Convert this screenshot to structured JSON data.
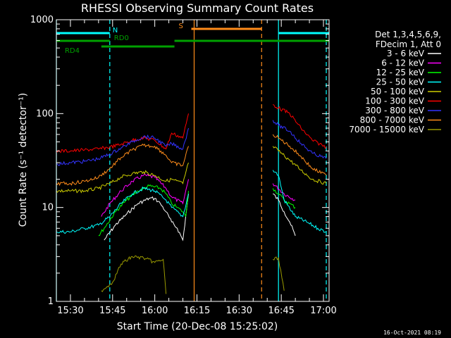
{
  "colors": {
    "background": "#000000",
    "axis": "#ffffff",
    "cyan": "#00ffff",
    "green": "#00a000",
    "orange": "#ff8c1a"
  },
  "chart_data": {
    "type": "line",
    "title": "RHESSI Observing Summary Count Rates",
    "xlabel": "Start Time (20-Dec-08 15:25:02)",
    "ylabel": "Count Rate (s⁻¹ detector⁻¹)",
    "y_scale": "log",
    "ylim": [
      1,
      1000
    ],
    "xlim": [
      "15:25",
      "17:02"
    ],
    "x_ticks": [
      "15:30",
      "15:45",
      "16:00",
      "16:15",
      "16:30",
      "16:45",
      "17:00"
    ],
    "y_ticks": [
      "1",
      "10",
      "100",
      "1000"
    ],
    "legend_header": [
      "Det 1,3,4,5,6,9,",
      "FDecim 1, Att 0"
    ],
    "legend_position": "right",
    "footer": "16-Oct-2021 08:19",
    "grid": false,
    "flags": [
      {
        "label": "N",
        "color": "#00ffff",
        "row": "N",
        "segments": [
          [
            "15:25",
            "15:44"
          ],
          [
            "16:44",
            "17:02"
          ]
        ]
      },
      {
        "label": "RD0",
        "color": "#00a000",
        "row": "RD0",
        "segments": [
          [
            "15:25",
            "15:44"
          ],
          [
            "16:07",
            "17:02"
          ]
        ]
      },
      {
        "label": "RD4",
        "color": "#00a000",
        "row": "RD4",
        "segments": [
          [
            "15:41",
            "16:07"
          ]
        ]
      },
      {
        "label": "S",
        "color": "#ff8c1a",
        "row": "S",
        "segments": [
          [
            "16:13",
            "16:38"
          ]
        ]
      }
    ],
    "vlines": [
      {
        "t": "15:25",
        "color": "#00ffff",
        "style": "solid"
      },
      {
        "t": "15:44",
        "color": "#00ffff",
        "style": "dashed"
      },
      {
        "t": "16:14",
        "color": "#ff8c1a",
        "style": "solid"
      },
      {
        "t": "16:38",
        "color": "#ff8c1a",
        "style": "dashed"
      },
      {
        "t": "16:44",
        "color": "#00ffff",
        "style": "solid"
      },
      {
        "t": "17:01",
        "color": "#00ffff",
        "style": "dashed"
      }
    ],
    "series": [
      {
        "name": "3 - 6 keV",
        "color": "#ffffff",
        "x": [
          "15:42",
          "15:46",
          "15:50",
          "15:54",
          "15:58",
          "16:00",
          "16:02",
          "16:04",
          "16:06",
          "16:08",
          "16:10",
          "16:11",
          "16:12",
          "16:42",
          "16:44",
          "16:46",
          "16:48",
          "16:50"
        ],
        "y": [
          4.5,
          6.5,
          8.5,
          11,
          12.5,
          12.5,
          11,
          9,
          7,
          6,
          4.5,
          8,
          14,
          14,
          12,
          9,
          7,
          5
        ]
      },
      {
        "name": "6 - 12 keV",
        "color": "#ff00ff",
        "x": [
          "15:41",
          "15:44",
          "15:48",
          "15:52",
          "15:56",
          "16:00",
          "16:04",
          "16:06",
          "16:10",
          "16:12",
          "16:42",
          "16:46",
          "16:50"
        ],
        "y": [
          8,
          11,
          15,
          19,
          22,
          21,
          16,
          13,
          11,
          20,
          18,
          14,
          12
        ]
      },
      {
        "name": "12 - 25 keV",
        "color": "#00ff00",
        "x": [
          "15:40",
          "15:42",
          "15:46",
          "15:50",
          "15:54",
          "15:58",
          "16:02",
          "16:04",
          "16:06",
          "16:08",
          "16:10",
          "16:11",
          "16:12",
          "16:42",
          "16:44",
          "16:46",
          "16:48",
          "16:50"
        ],
        "y": [
          5,
          6,
          9,
          12,
          15,
          17,
          16,
          14,
          11,
          10,
          9,
          8,
          15,
          16,
          14,
          12,
          11,
          10
        ]
      },
      {
        "name": "25 - 50 keV",
        "color": "#00ffff",
        "x": [
          "15:25",
          "15:30",
          "15:35",
          "15:40",
          "15:44",
          "15:48",
          "15:52",
          "15:56",
          "16:00",
          "16:04",
          "16:06",
          "16:10",
          "16:12",
          "16:42",
          "16:44",
          "16:46",
          "16:50",
          "16:54",
          "16:58",
          "17:01"
        ],
        "y": [
          5.5,
          5.5,
          6,
          6.5,
          8,
          11,
          14,
          16,
          15,
          12,
          10,
          8,
          14,
          25,
          22,
          12,
          8,
          7,
          6,
          5.5
        ]
      },
      {
        "name": "50 - 100 keV",
        "color": "#cccc00",
        "x": [
          "15:25",
          "15:30",
          "15:35",
          "15:40",
          "15:44",
          "15:48",
          "15:52",
          "15:56",
          "16:00",
          "16:04",
          "16:06",
          "16:10",
          "16:12",
          "16:42",
          "16:44",
          "16:48",
          "16:52",
          "16:56",
          "17:01"
        ],
        "y": [
          15,
          15,
          15,
          16,
          18,
          21,
          23,
          24,
          22,
          19,
          20,
          18,
          30,
          45,
          40,
          32,
          25,
          20,
          18
        ]
      },
      {
        "name": "100 - 300 keV",
        "color": "#ff0000",
        "x": [
          "15:25",
          "15:30",
          "15:35",
          "15:40",
          "15:44",
          "15:48",
          "15:52",
          "15:56",
          "16:00",
          "16:04",
          "16:06",
          "16:10",
          "16:12",
          "16:42",
          "16:44",
          "16:48",
          "16:52",
          "16:56",
          "17:01"
        ],
        "y": [
          40,
          40,
          41,
          42,
          44,
          47,
          52,
          55,
          52,
          42,
          62,
          55,
          100,
          125,
          115,
          100,
          70,
          52,
          44
        ]
      },
      {
        "name": "300 - 800 keV",
        "color": "#3333ff",
        "x": [
          "15:25",
          "15:30",
          "15:35",
          "15:40",
          "15:44",
          "15:48",
          "15:52",
          "15:56",
          "16:00",
          "16:04",
          "16:06",
          "16:10",
          "16:12",
          "16:42",
          "16:44",
          "16:48",
          "16:52",
          "16:56",
          "17:01"
        ],
        "y": [
          29,
          30,
          31,
          33,
          37,
          43,
          50,
          57,
          55,
          45,
          48,
          42,
          70,
          85,
          75,
          65,
          48,
          38,
          33
        ]
      },
      {
        "name": "800 - 7000 keV",
        "color": "#ff8c1a",
        "x": [
          "15:25",
          "15:30",
          "15:35",
          "15:40",
          "15:44",
          "15:48",
          "15:52",
          "15:56",
          "16:00",
          "16:04",
          "16:06",
          "16:10",
          "16:12",
          "16:42",
          "16:44",
          "16:48",
          "16:52",
          "16:56",
          "17:01"
        ],
        "y": [
          18,
          18,
          19,
          21,
          26,
          34,
          41,
          46,
          45,
          36,
          30,
          28,
          45,
          60,
          55,
          45,
          35,
          26,
          22
        ]
      },
      {
        "name": "7000 - 15000 keV",
        "color": "#999900",
        "x": [
          "15:41",
          "15:45",
          "15:48",
          "15:52",
          "15:56",
          "16:00",
          "16:03",
          "16:04",
          "16:42",
          "16:44",
          "16:46"
        ],
        "y": [
          1.3,
          1.6,
          2.5,
          3.0,
          2.9,
          2.6,
          2.8,
          1.2,
          2.8,
          2.9,
          1.3
        ]
      }
    ]
  }
}
